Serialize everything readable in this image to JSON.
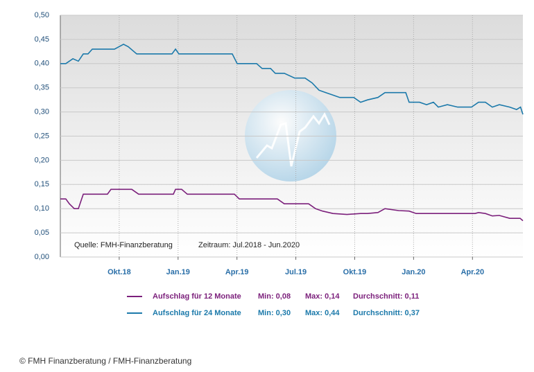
{
  "chart_data": {
    "type": "line",
    "xlim": [
      0,
      23.57
    ],
    "xticks": [
      {
        "value": 3,
        "label": "Okt.18"
      },
      {
        "value": 6,
        "label": "Jan.19"
      },
      {
        "value": 9,
        "label": "Apr.19"
      },
      {
        "value": 12,
        "label": "Jul.19"
      },
      {
        "value": 15,
        "label": "Okt.19"
      },
      {
        "value": 18,
        "label": "Jan.20"
      },
      {
        "value": 21,
        "label": "Apr.20"
      }
    ],
    "ylim": [
      0,
      0.5
    ],
    "yticks": [
      {
        "value": 0,
        "label": "0,00"
      },
      {
        "value": 0.05,
        "label": "0,05"
      },
      {
        "value": 0.1,
        "label": "0,10"
      },
      {
        "value": 0.15,
        "label": "0,15"
      },
      {
        "value": 0.2,
        "label": "0,20"
      },
      {
        "value": 0.25,
        "label": "0,25"
      },
      {
        "value": 0.3,
        "label": "0,30"
      },
      {
        "value": 0.35,
        "label": "0,35"
      },
      {
        "value": 0.4,
        "label": "0,40"
      },
      {
        "value": 0.45,
        "label": "0,45"
      },
      {
        "value": 0.5,
        "label": "0,50"
      }
    ],
    "grid": true,
    "source": "Quelle: FMH-Finanzberatung",
    "period": "Zeitraum: Jul.2018 - Jun.2020",
    "series": [
      {
        "name": "Aufschlag für 12 Monate",
        "color": "#7b1f7b",
        "stats": [
          "Min: 0,08",
          "Max: 0,14",
          "Durchschnitt: 0,11"
        ],
        "x": [
          0,
          0.28,
          0.46,
          0.71,
          0.92,
          1.17,
          2.4,
          2.58,
          3.64,
          3.99,
          5.76,
          5.87,
          6.18,
          6.47,
          8.87,
          9.12,
          10.0,
          11.06,
          11.41,
          12.65,
          13.0,
          13.36,
          13.89,
          14.6,
          15.3,
          15.65,
          16.18,
          16.54,
          17.24,
          17.77,
          18.13,
          21.13,
          21.31,
          21.66,
          22.01,
          22.37,
          22.9,
          23.43,
          23.57
        ],
        "values": [
          0.12,
          0.12,
          0.11,
          0.1,
          0.1,
          0.13,
          0.13,
          0.14,
          0.14,
          0.13,
          0.13,
          0.14,
          0.14,
          0.13,
          0.13,
          0.12,
          0.12,
          0.12,
          0.11,
          0.11,
          0.1,
          0.095,
          0.09,
          0.088,
          0.09,
          0.09,
          0.092,
          0.1,
          0.096,
          0.095,
          0.09,
          0.09,
          0.092,
          0.09,
          0.085,
          0.086,
          0.08,
          0.08,
          0.075
        ]
      },
      {
        "name": "Aufschlag für 24 Monate",
        "color": "#1b79aa",
        "stats": [
          "Min: 0,30",
          "Max: 0,44",
          "Durchschnitt: 0,37"
        ],
        "x": [
          0,
          0.28,
          0.64,
          0.92,
          1.17,
          1.41,
          1.63,
          2.76,
          3.22,
          3.46,
          3.89,
          5.69,
          5.87,
          6.04,
          7.53,
          8.76,
          9.01,
          10.0,
          10.28,
          10.71,
          10.95,
          11.41,
          11.94,
          12.47,
          12.83,
          13.18,
          13.53,
          13.89,
          14.24,
          14.95,
          15.3,
          15.65,
          16.18,
          16.54,
          17.6,
          17.77,
          18.3,
          18.66,
          19.01,
          19.26,
          19.72,
          20.25,
          20.95,
          21.31,
          21.66,
          22.01,
          22.37,
          22.9,
          23.25,
          23.45,
          23.57
        ],
        "values": [
          0.4,
          0.4,
          0.41,
          0.405,
          0.42,
          0.42,
          0.43,
          0.43,
          0.44,
          0.435,
          0.42,
          0.42,
          0.43,
          0.42,
          0.42,
          0.42,
          0.4,
          0.4,
          0.39,
          0.39,
          0.38,
          0.38,
          0.37,
          0.37,
          0.36,
          0.345,
          0.34,
          0.335,
          0.33,
          0.33,
          0.32,
          0.325,
          0.33,
          0.34,
          0.34,
          0.32,
          0.32,
          0.315,
          0.32,
          0.31,
          0.315,
          0.31,
          0.31,
          0.32,
          0.32,
          0.31,
          0.315,
          0.31,
          0.305,
          0.31,
          0.295
        ]
      }
    ]
  },
  "footer": "© FMH Finanzberatung / FMH-Finanzberatung"
}
